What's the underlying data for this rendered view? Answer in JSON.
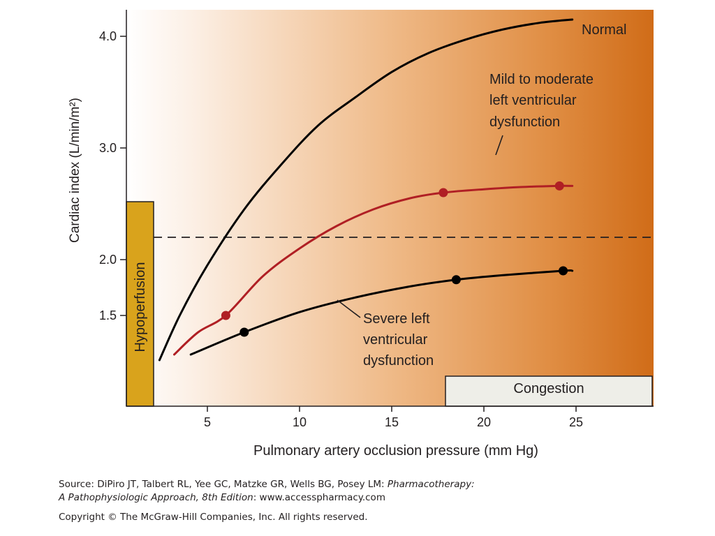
{
  "chart_data": {
    "type": "line",
    "xlabel": "Pulmonary artery occlusion pressure (mm Hg)",
    "ylabel": "Cardiac index (L/min/m²)",
    "xlim": [
      0,
      28.7
    ],
    "ylim": [
      1.0,
      4.3
    ],
    "xticks": [
      5,
      10,
      15,
      20,
      25
    ],
    "yticks": [
      1.5,
      2.0,
      3.0,
      4.0
    ],
    "xtick_labels": [
      "5",
      "10",
      "15",
      "20",
      "25"
    ],
    "ytick_labels": [
      "1.5",
      "2.0",
      "3.0",
      "4.0"
    ],
    "grid": false,
    "threshold_line": {
      "y": 2.2,
      "style": "dashed"
    },
    "series": [
      {
        "name": "Normal",
        "color": "#000000",
        "points": [
          [
            2.4,
            1.1
          ],
          [
            3.5,
            1.5
          ],
          [
            5,
            1.95
          ],
          [
            7,
            2.45
          ],
          [
            9,
            2.85
          ],
          [
            11,
            3.2
          ],
          [
            13,
            3.45
          ],
          [
            15,
            3.68
          ],
          [
            17,
            3.85
          ],
          [
            19,
            3.97
          ],
          [
            21,
            4.06
          ],
          [
            23,
            4.12
          ],
          [
            24.8,
            4.15
          ]
        ],
        "markers": []
      },
      {
        "name": "Mild to moderate left ventricular dysfunction",
        "color": "#b01f24",
        "points": [
          [
            3.2,
            1.15
          ],
          [
            4.5,
            1.35
          ],
          [
            6,
            1.5
          ],
          [
            8,
            1.85
          ],
          [
            10,
            2.1
          ],
          [
            12,
            2.3
          ],
          [
            14,
            2.45
          ],
          [
            16,
            2.55
          ],
          [
            17.8,
            2.6
          ],
          [
            20,
            2.63
          ],
          [
            22,
            2.65
          ],
          [
            24,
            2.66
          ],
          [
            24.8,
            2.66
          ]
        ],
        "markers": [
          [
            6,
            1.5
          ],
          [
            17.8,
            2.6
          ],
          [
            24.1,
            2.66
          ]
        ]
      },
      {
        "name": "Severe left ventricular dysfunction",
        "color": "#000000",
        "points": [
          [
            4.1,
            1.15
          ],
          [
            7,
            1.35
          ],
          [
            10,
            1.53
          ],
          [
            13,
            1.66
          ],
          [
            16,
            1.76
          ],
          [
            18.5,
            1.82
          ],
          [
            21,
            1.86
          ],
          [
            24.3,
            1.9
          ],
          [
            24.8,
            1.9
          ]
        ],
        "markers": [
          [
            7,
            1.35
          ],
          [
            18.5,
            1.82
          ],
          [
            24.3,
            1.9
          ]
        ]
      }
    ],
    "regions": [
      {
        "label": "Hypoperfusion",
        "color": "#d9a31c"
      },
      {
        "label": "Congestion",
        "color": "#eeeee8"
      }
    ],
    "annotations": {
      "normal": "Normal",
      "mild": [
        "Mild to moderate",
        "left ventricular",
        "dysfunction"
      ],
      "severe": [
        "Severe left",
        "ventricular",
        "dysfunction"
      ]
    },
    "background_gradient": [
      "#ffffff",
      "#d46f19"
    ]
  },
  "footer": {
    "source_prefix": "Source: DiPiro JT, Talbert RL, Yee GC, Matzke GR, Wells BG, Posey LM: ",
    "source_book": "Pharmacotherapy:",
    "source_book2": "A Pathophysiologic Approach, 8th Edition",
    "source_url": ": www.accesspharmacy.com",
    "copyright": "Copyright © The McGraw-Hill Companies, Inc. All rights reserved."
  }
}
